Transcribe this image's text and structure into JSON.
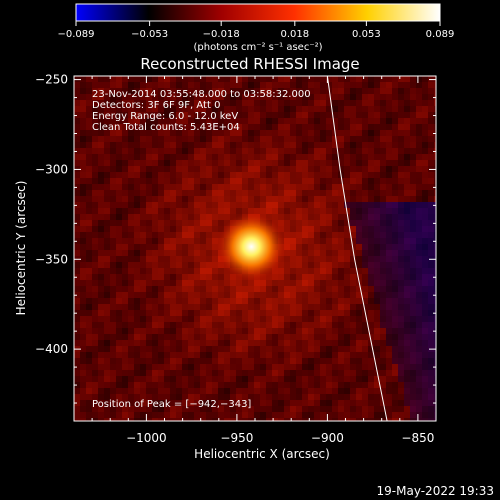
{
  "chart_data": {
    "type": "heatmap",
    "title": "Reconstructed RHESSI Image",
    "xlabel": "Heliocentric X (arcsec)",
    "ylabel": "Heliocentric Y (arcsec)",
    "xlim": [
      -1040,
      -840
    ],
    "ylim": [
      -440,
      -248
    ],
    "x_ticks": [
      -1000,
      -950,
      -900,
      -850
    ],
    "x_tick_labels": [
      "−1000",
      "−950",
      "−900",
      "−850"
    ],
    "y_ticks": [
      -250,
      -300,
      -350,
      -400
    ],
    "y_tick_labels": [
      "−250",
      "−300",
      "−350",
      "−400"
    ],
    "colorbar": {
      "range": [
        -0.089,
        0.089
      ],
      "ticks": [
        -0.089,
        -0.053,
        -0.018,
        0.018,
        0.053,
        0.089
      ],
      "tick_labels": [
        "−0.089",
        "−0.053",
        "−0.018",
        "0.018",
        "0.053",
        "0.089"
      ],
      "unit_label": "(photons cm⁻² s⁻¹ asec⁻²)",
      "colors": [
        "#0000ff",
        "#000000",
        "#a00000",
        "#ff3000",
        "#ffd000",
        "#ffffff"
      ]
    },
    "annotations": [
      "23-Nov-2014 03:55:48.000 to 03:58:32.000",
      "Detectors: 3F 6F 9F, Att 0",
      "Energy Range: 6.0 - 12.0 keV",
      "Clean    Total counts: 5.43E+04"
    ],
    "peak": {
      "label": "Position of Peak = [−942,−343]",
      "x": -942,
      "y": -343
    },
    "limb_line": [
      {
        "x": -900,
        "y": -248
      },
      {
        "x": -893,
        "y": -300
      },
      {
        "x": -885,
        "y": -350
      },
      {
        "x": -875,
        "y": -400
      },
      {
        "x": -867,
        "y": -440
      }
    ]
  },
  "footer": {
    "timestamp": "19-May-2022 19:33"
  }
}
